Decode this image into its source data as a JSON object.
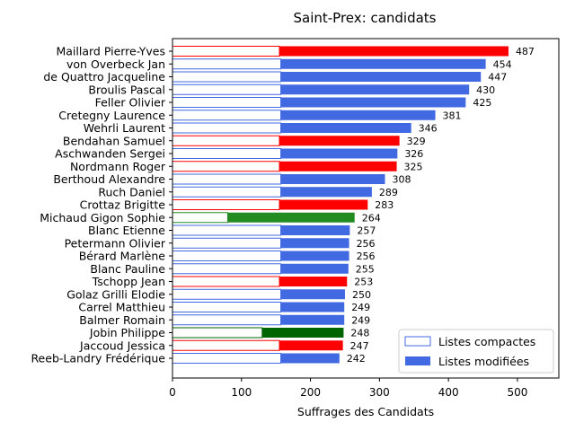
{
  "chart_data": {
    "type": "bar",
    "orientation": "horizontal",
    "stacked": true,
    "title": "Saint-Prex: candidats",
    "xlabel": "Suffrages des Candidats",
    "ylabel": "",
    "xlim": [
      0,
      560
    ],
    "xticks": [
      0,
      100,
      200,
      300,
      400,
      500
    ],
    "grid": false,
    "legend_position": "bottom-right",
    "legend": {
      "compact_label": "Listes compactes",
      "modified_label": "Listes modifiées"
    },
    "candidates": [
      {
        "name": "Maillard Pierre-Yves",
        "compact": 155,
        "total": 487,
        "color": "#ff0000"
      },
      {
        "name": "von Overbeck Jan",
        "compact": 157,
        "total": 454,
        "color": "#4169e1"
      },
      {
        "name": "de Quattro Jacqueline",
        "compact": 157,
        "total": 447,
        "color": "#4169e1"
      },
      {
        "name": "Broulis Pascal",
        "compact": 157,
        "total": 430,
        "color": "#4169e1"
      },
      {
        "name": "Feller Olivier",
        "compact": 157,
        "total": 425,
        "color": "#4169e1"
      },
      {
        "name": "Cretegny Laurence",
        "compact": 157,
        "total": 381,
        "color": "#4169e1"
      },
      {
        "name": "Wehrli Laurent",
        "compact": 157,
        "total": 346,
        "color": "#4169e1"
      },
      {
        "name": "Bendahan Samuel",
        "compact": 155,
        "total": 329,
        "color": "#ff0000"
      },
      {
        "name": "Aschwanden Sergei",
        "compact": 157,
        "total": 326,
        "color": "#4169e1"
      },
      {
        "name": "Nordmann Roger",
        "compact": 155,
        "total": 325,
        "color": "#ff0000"
      },
      {
        "name": "Berthoud Alexandre",
        "compact": 157,
        "total": 308,
        "color": "#4169e1"
      },
      {
        "name": "Ruch Daniel",
        "compact": 157,
        "total": 289,
        "color": "#4169e1"
      },
      {
        "name": "Crottaz Brigitte",
        "compact": 155,
        "total": 283,
        "color": "#ff0000"
      },
      {
        "name": "Michaud Gigon Sophie",
        "compact": 80,
        "total": 264,
        "color": "#228b22"
      },
      {
        "name": "Blanc Etienne",
        "compact": 157,
        "total": 257,
        "color": "#4169e1"
      },
      {
        "name": "Petermann Olivier",
        "compact": 157,
        "total": 256,
        "color": "#4169e1"
      },
      {
        "name": "Bérard Marlène",
        "compact": 157,
        "total": 256,
        "color": "#4169e1"
      },
      {
        "name": "Blanc Pauline",
        "compact": 157,
        "total": 255,
        "color": "#4169e1"
      },
      {
        "name": "Tschopp Jean",
        "compact": 155,
        "total": 253,
        "color": "#ff0000"
      },
      {
        "name": "Golaz Grilli Elodie",
        "compact": 157,
        "total": 250,
        "color": "#4169e1"
      },
      {
        "name": "Carrel Matthieu",
        "compact": 157,
        "total": 249,
        "color": "#4169e1"
      },
      {
        "name": "Balmer Romain",
        "compact": 157,
        "total": 249,
        "color": "#4169e1"
      },
      {
        "name": "Jobin Philippe",
        "compact": 130,
        "total": 248,
        "color": "#006400"
      },
      {
        "name": "Jaccoud Jessica",
        "compact": 155,
        "total": 247,
        "color": "#ff0000"
      },
      {
        "name": "Reeb-Landry Frédérique",
        "compact": 157,
        "total": 242,
        "color": "#4169e1"
      }
    ],
    "legend_color": "#4169e1"
  }
}
